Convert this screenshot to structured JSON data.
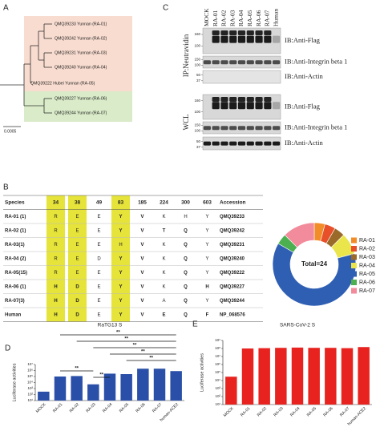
{
  "panel_a": {
    "label": "A",
    "leaves": [
      "QMQ39233 Yunnan (RA-01)",
      "QMQ39242 Yunnan (RA-02)",
      "QMQ39231 Yunnan (RA-03)",
      "QMQ39240 Yunnan (RA-04)",
      "QMQ39222 Hubei Yunnan (RA-05)",
      "QMQ39227 Yunnan (RA-06)",
      "QMQ39244 Yunnan (RA-07)"
    ],
    "scale_label": "0.0005"
  },
  "panel_c": {
    "label": "C",
    "lanes": [
      "MOCK",
      "RA-01",
      "RA-02",
      "RA-03",
      "RA-04",
      "RA-05",
      "RA-06",
      "RA-07",
      "Human"
    ],
    "groups": [
      {
        "name": "IP:Neutravidin",
        "blots": [
          {
            "antibody": "IB:Anti-Flag",
            "markers": [
              160,
              100
            ]
          },
          {
            "antibody": "IB:Anti-Integrin beta 1",
            "markers": [
              150,
              100
            ]
          },
          {
            "antibody": "IB:Anti-Actin",
            "markers": [
              50,
              37
            ]
          }
        ]
      },
      {
        "name": "WCL",
        "blots": [
          {
            "antibody": "IB:Anti-Flag",
            "markers": [
              160,
              100
            ]
          },
          {
            "antibody": "IB:Anti-Integrin beta 1",
            "markers": [
              150,
              100
            ]
          },
          {
            "antibody": "IB:Anti-Actin",
            "markers": [
              50,
              37
            ]
          }
        ]
      }
    ]
  },
  "panel_b": {
    "label": "B",
    "table": {
      "header": [
        "Species",
        "34",
        "38",
        "49",
        "83",
        "185",
        "224",
        "300",
        "603",
        "Accession"
      ],
      "rows": [
        [
          "RA-01 (1)",
          "R",
          "E",
          "E",
          "Y",
          "V",
          "K",
          "H",
          "Y",
          "QMQ39233"
        ],
        [
          "RA-02 (1)",
          "R",
          "E",
          "E",
          "Y",
          "V",
          "T",
          "Q",
          "Y",
          "QMQ39242"
        ],
        [
          "RA-03(1)",
          "R",
          "E",
          "E",
          "H",
          "V",
          "K",
          "Q",
          "Y",
          "QMQ39231"
        ],
        [
          "RA-04 (2)",
          "R",
          "E",
          "D",
          "Y",
          "V",
          "K",
          "Q",
          "Y",
          "QMQ39240"
        ],
        [
          "RA-05(15)",
          "R",
          "E",
          "E",
          "Y",
          "V",
          "K",
          "Q",
          "Y",
          "QMQ39222"
        ],
        [
          "RA-06 (1)",
          "H",
          "D",
          "E",
          "Y",
          "V",
          "K",
          "Q",
          "H",
          "QMQ39227"
        ],
        [
          "RA-07(3)",
          "H",
          "D",
          "E",
          "Y",
          "V",
          "A",
          "Q",
          "Y",
          "QMQ39244"
        ],
        [
          "Human",
          "H",
          "D",
          "E",
          "Y",
          "V",
          "E",
          "Q",
          "F",
          "NP_068576"
        ]
      ]
    }
  },
  "chart_data": [
    {
      "type": "pie",
      "center_label": "Total=24",
      "categories": [
        "RA-01",
        "RA-02",
        "RA-03",
        "RA-04",
        "RA-05",
        "RA-06",
        "RA-07"
      ],
      "values": [
        1,
        1,
        1,
        2,
        15,
        1,
        3
      ],
      "colors": [
        "#f28c28",
        "#e8502a",
        "#9a6a2a",
        "#eae54a",
        "#2f5fb3",
        "#4caf50",
        "#f28b9b"
      ]
    },
    {
      "type": "bar",
      "panel_label": "D",
      "title": "RaTG13 S",
      "ylabel": "Luciferase activities",
      "categories": [
        "MOCK",
        "RA-01",
        "RA-02",
        "RA-03",
        "RA-04",
        "RA-05",
        "RA-06",
        "RA-07",
        "human-ACE2"
      ],
      "values": [
        300,
        100000,
        120000,
        5000,
        300000,
        250000,
        2000000,
        2000000,
        800000
      ],
      "color": "#2a4fa8",
      "log": true,
      "ylim": [
        10,
        10000000
      ],
      "yticks": [
        {
          "value": 10,
          "label": "10¹"
        },
        {
          "value": 100,
          "label": "10²"
        },
        {
          "value": 1000,
          "label": "10³"
        },
        {
          "value": 10000,
          "label": "10⁴"
        },
        {
          "value": 100000,
          "label": "10⁵"
        },
        {
          "value": 1000000,
          "label": "10⁶"
        },
        {
          "value": 10000000,
          "label": "10⁷"
        }
      ],
      "annotations": [
        "**",
        "**",
        "**",
        "**",
        "**",
        "**",
        "**"
      ]
    },
    {
      "type": "bar",
      "panel_label": "E",
      "title": "SARS-CoV-2 S",
      "ylabel": "Luciferase activities",
      "categories": [
        "MOCK",
        "RA-01",
        "RA-02",
        "RA-03",
        "RA-04",
        "RA-05",
        "RA-06",
        "RA-07",
        "human-ACE2"
      ],
      "values": [
        30000,
        100000000,
        110000000,
        120000000,
        130000000,
        120000000,
        120000000,
        110000000,
        150000000
      ],
      "color": "#e8231f",
      "log": true,
      "ylim": [
        10,
        1000000000
      ],
      "yticks": [
        {
          "value": 10,
          "label": "10¹"
        },
        {
          "value": 100,
          "label": "10²"
        },
        {
          "value": 1000,
          "label": "10³"
        },
        {
          "value": 10000,
          "label": "10⁴"
        },
        {
          "value": 100000,
          "label": "10⁵"
        },
        {
          "value": 1000000,
          "label": "10⁶"
        },
        {
          "value": 10000000,
          "label": "10⁷"
        },
        {
          "value": 100000000,
          "label": "10⁸"
        },
        {
          "value": 1000000000,
          "label": "10⁹"
        }
      ]
    }
  ]
}
